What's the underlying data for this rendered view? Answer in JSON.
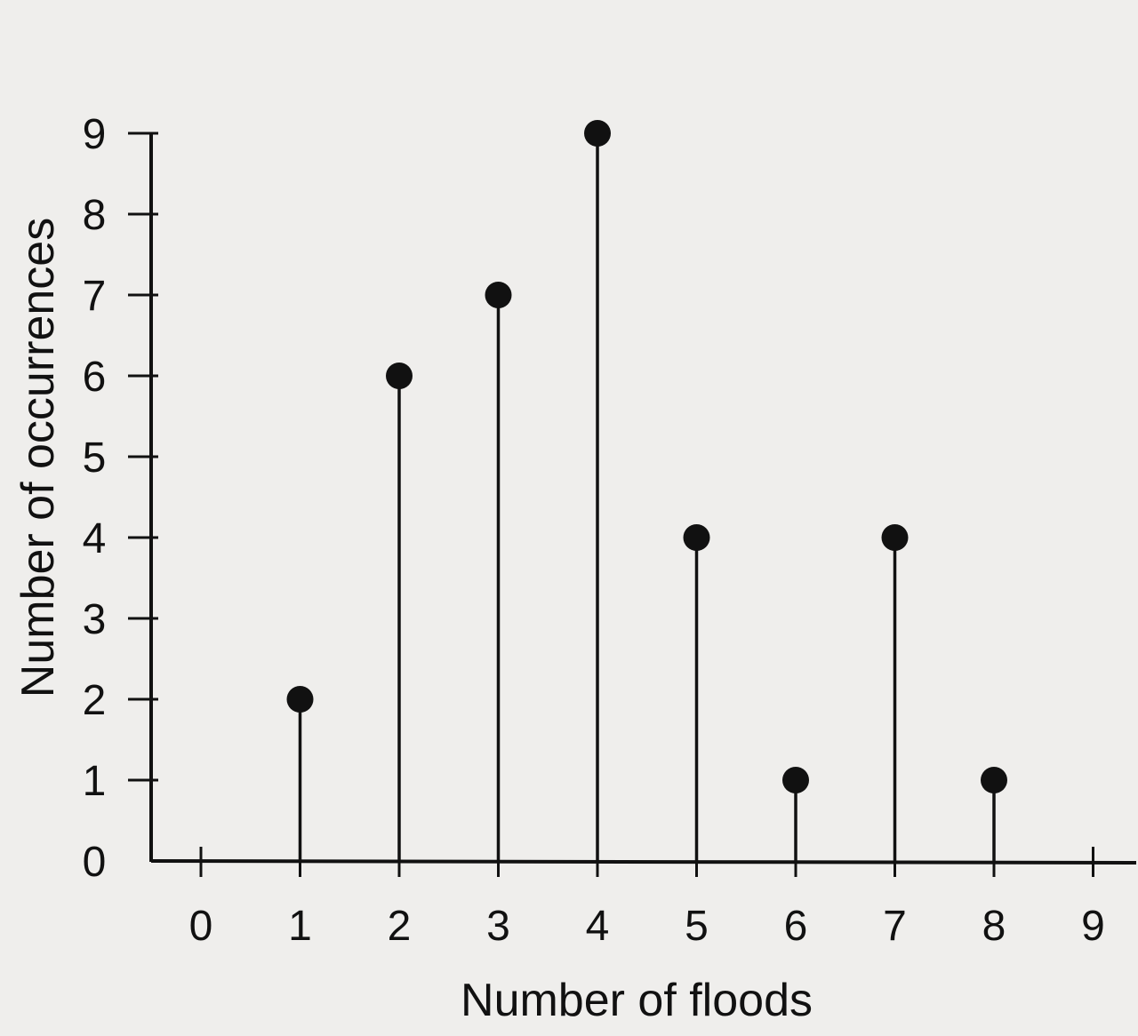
{
  "chart_data": {
    "type": "stem",
    "title": "",
    "xlabel": "Number of floods",
    "ylabel": "Number of occurrences",
    "xlim": [
      0,
      9
    ],
    "ylim": [
      0,
      9
    ],
    "x_ticks": [
      0,
      1,
      2,
      3,
      4,
      5,
      6,
      7,
      8,
      9
    ],
    "y_ticks": [
      0,
      1,
      2,
      3,
      4,
      5,
      6,
      7,
      8,
      9
    ],
    "x": [
      1,
      2,
      3,
      4,
      5,
      6,
      7,
      8
    ],
    "values": [
      2,
      6,
      7,
      9,
      4,
      1,
      4,
      1
    ],
    "grid": false,
    "colors": {
      "ink": "#111111",
      "background": "#efeeec"
    }
  }
}
